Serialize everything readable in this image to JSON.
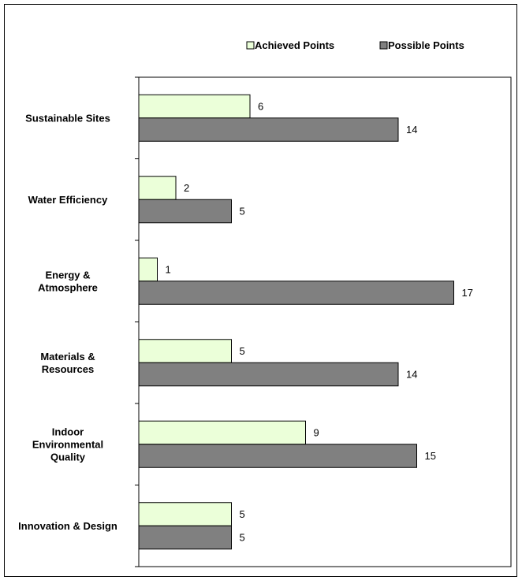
{
  "chart_data": {
    "type": "bar",
    "orientation": "horizontal",
    "title": "",
    "xlabel": "",
    "ylabel": "",
    "categories": [
      "Sustainable Sites",
      "Water Efficiency",
      "Energy & Atmosphere",
      "Materials & Resources",
      "Indoor Environmental Quality",
      "Innovation & Design"
    ],
    "series": [
      {
        "name": "Achieved Points",
        "values": [
          6,
          2,
          1,
          5,
          9,
          5
        ],
        "color": "#ebffd9"
      },
      {
        "name": "Possible Points",
        "values": [
          14,
          5,
          17,
          14,
          15,
          5
        ],
        "color": "#808080"
      }
    ],
    "xlim": [
      0,
      20
    ],
    "grid": false,
    "legend_position": "top"
  }
}
